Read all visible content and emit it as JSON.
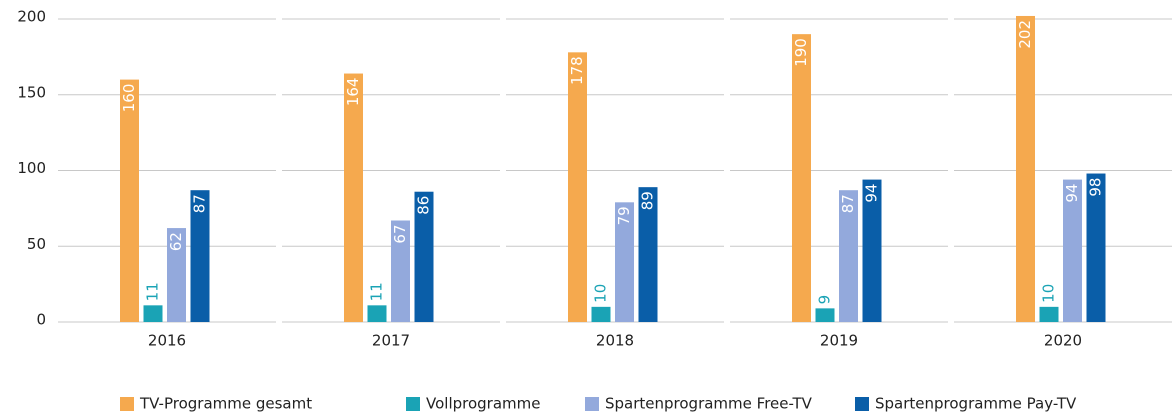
{
  "chart_data": {
    "type": "bar",
    "categories": [
      "2016",
      "2017",
      "2018",
      "2019",
      "2020"
    ],
    "series": [
      {
        "name": "TV-Programme gesamt",
        "color": "#f5a94e",
        "values": [
          160,
          164,
          178,
          190,
          202
        ]
      },
      {
        "name": "Vollprogramme",
        "color": "#1aa3b5",
        "values": [
          11,
          11,
          10,
          9,
          10
        ]
      },
      {
        "name": "Spartenprogramme Free-TV",
        "color": "#93a9dc",
        "values": [
          62,
          67,
          79,
          87,
          94
        ]
      },
      {
        "name": "Spartenprogramme Pay-TV",
        "color": "#0a5ea8",
        "values": [
          87,
          86,
          89,
          94,
          98
        ]
      }
    ],
    "ylim": [
      0,
      200
    ],
    "yticks": [
      0,
      50,
      100,
      150,
      200
    ],
    "grid": true,
    "legend": "bottom"
  }
}
